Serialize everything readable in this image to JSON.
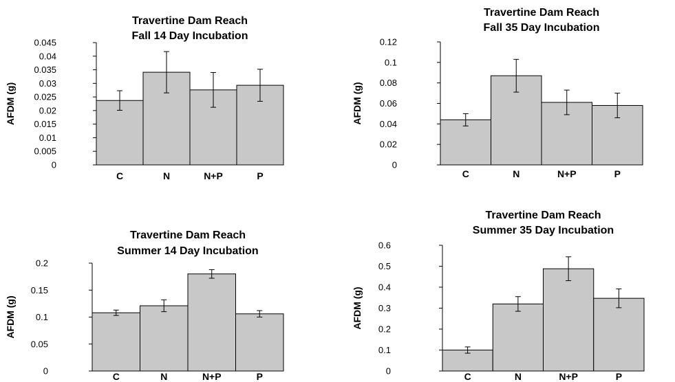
{
  "chart_data": [
    {
      "type": "bar",
      "title": [
        "Travertine Dam Reach",
        "Fall 14 Day Incubation"
      ],
      "ylabel": "AFDM (g)",
      "categories": [
        "C",
        "N",
        "N+P",
        "P"
      ],
      "values": [
        0.0237,
        0.0341,
        0.0276,
        0.0293
      ],
      "errors": [
        0.0036,
        0.0076,
        0.0064,
        0.0059
      ],
      "ylim": [
        0,
        0.045
      ],
      "yticks": [
        "0",
        "0.005",
        "0.01",
        "0.015",
        "0.02",
        "0.025",
        "0.03",
        "0.035",
        "0.04",
        "0.045"
      ],
      "bar_color": "#c8c8c8",
      "grid": false,
      "legend": "none"
    },
    {
      "type": "bar",
      "title": [
        "Travertine Dam Reach",
        "Fall 35 Day Incubation"
      ],
      "ylabel": "AFDM (g)",
      "categories": [
        "C",
        "N",
        "N+P",
        "P"
      ],
      "values": [
        0.044,
        0.087,
        0.061,
        0.058
      ],
      "errors": [
        0.006,
        0.016,
        0.012,
        0.012
      ],
      "ylim": [
        0,
        0.12
      ],
      "yticks": [
        "0",
        "0.02",
        "0.04",
        "0.06",
        "0.08",
        "0.1",
        "0.12"
      ],
      "bar_color": "#c8c8c8",
      "grid": false,
      "legend": "none"
    },
    {
      "type": "bar",
      "title": [
        "Travertine Dam Reach",
        "Summer 14 Day Incubation"
      ],
      "ylabel": "AFDM (g)",
      "categories": [
        "C",
        "N",
        "N+P",
        "P"
      ],
      "values": [
        0.108,
        0.121,
        0.18,
        0.106
      ],
      "errors": [
        0.005,
        0.011,
        0.008,
        0.006
      ],
      "ylim": [
        0,
        0.2
      ],
      "yticks": [
        "0",
        "0.05",
        "0.1",
        "0.15",
        "0.2"
      ],
      "bar_color": "#c8c8c8",
      "grid": false,
      "legend": "none"
    },
    {
      "type": "bar",
      "title": [
        "Travertine Dam Reach",
        "Summer 35 Day Incubation"
      ],
      "ylabel": "AFDM (g)",
      "categories": [
        "C",
        "N",
        "N+P",
        "P"
      ],
      "values": [
        0.1,
        0.32,
        0.488,
        0.347
      ],
      "errors": [
        0.015,
        0.035,
        0.057,
        0.045
      ],
      "ylim": [
        0,
        0.6
      ],
      "yticks": [
        "0",
        "0.1",
        "0.2",
        "0.3",
        "0.4",
        "0.5",
        "0.6"
      ],
      "bar_color": "#c8c8c8",
      "grid": false,
      "legend": "none"
    }
  ]
}
